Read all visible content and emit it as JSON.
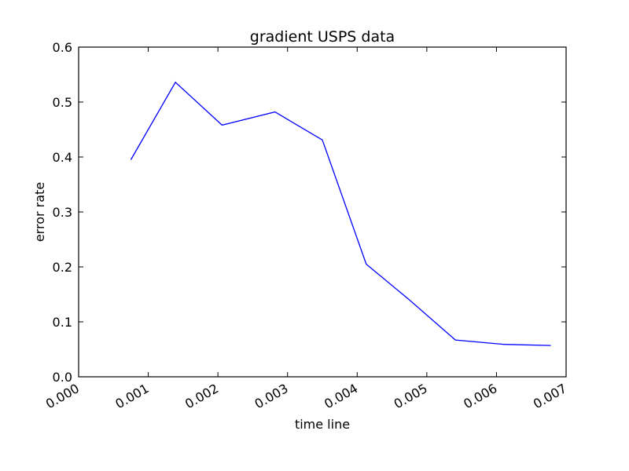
{
  "chart_data": {
    "type": "line",
    "title": "gradient USPS data",
    "xlabel": "time line",
    "ylabel": "error rate",
    "xlim": [
      0.0,
      0.007
    ],
    "ylim": [
      0.0,
      0.6
    ],
    "xticks": [
      "0.000",
      "0.001",
      "0.002",
      "0.003",
      "0.004",
      "0.005",
      "0.006",
      "0.007"
    ],
    "yticks": [
      "0.0",
      "0.1",
      "0.2",
      "0.3",
      "0.4",
      "0.5",
      "0.6"
    ],
    "grid": false,
    "series": [
      {
        "color": "#0000ff",
        "x": [
          0.00075,
          0.00139,
          0.00206,
          0.00282,
          0.0035,
          0.00413,
          0.00474,
          0.00541,
          0.00611,
          0.00678
        ],
        "y": [
          0.395,
          0.536,
          0.458,
          0.482,
          0.431,
          0.205,
          0.141,
          0.067,
          0.059,
          0.057
        ]
      }
    ]
  }
}
